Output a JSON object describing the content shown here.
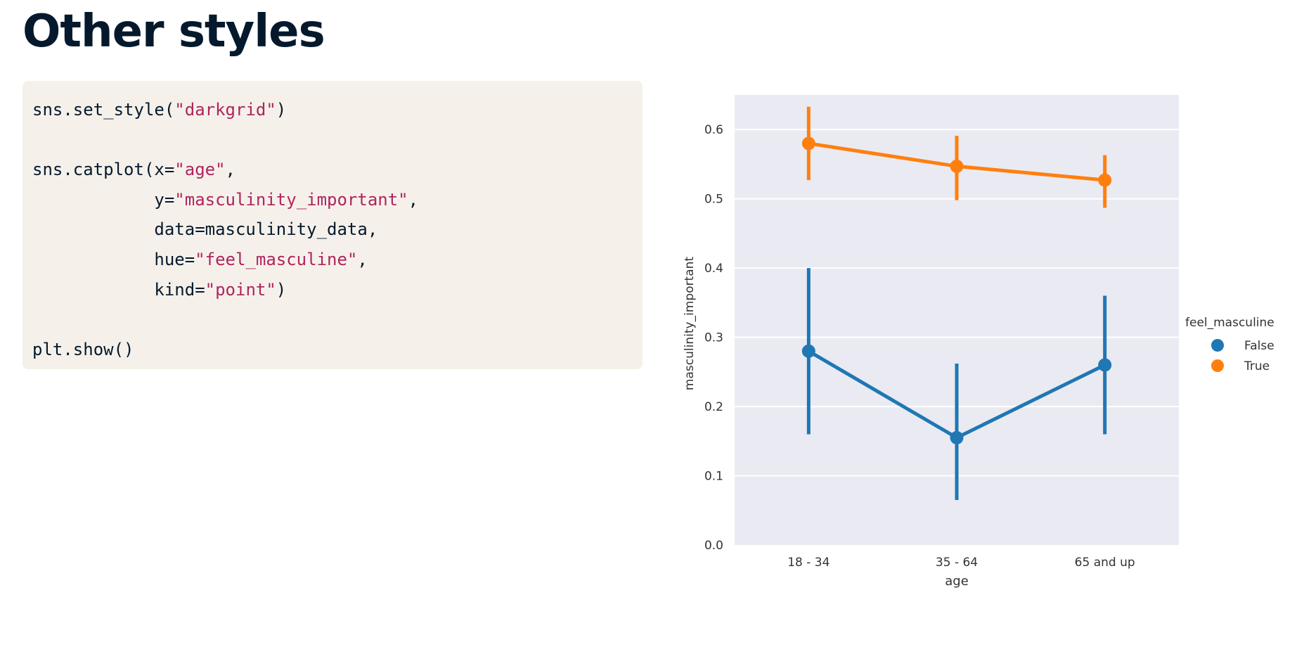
{
  "page": {
    "title": "Other styles"
  },
  "code": {
    "lines": [
      [
        {
          "t": "sns.set_style("
        },
        {
          "t": "\"darkgrid\"",
          "s": true
        },
        {
          "t": ")"
        }
      ],
      [],
      [
        {
          "t": "sns.catplot(x="
        },
        {
          "t": "\"age\"",
          "s": true
        },
        {
          "t": ","
        }
      ],
      [
        {
          "t": "            y="
        },
        {
          "t": "\"masculinity_important\"",
          "s": true
        },
        {
          "t": ","
        }
      ],
      [
        {
          "t": "            data=masculinity_data,"
        }
      ],
      [
        {
          "t": "            hue="
        },
        {
          "t": "\"feel_masculine\"",
          "s": true
        },
        {
          "t": ","
        }
      ],
      [
        {
          "t": "            kind="
        },
        {
          "t": "\"point\"",
          "s": true
        },
        {
          "t": ")"
        }
      ],
      [],
      [
        {
          "t": "plt.show()"
        }
      ]
    ]
  },
  "chart_data": {
    "type": "line",
    "style": "darkgrid",
    "title": "",
    "xlabel": "age",
    "ylabel": "masculinity_important",
    "categories": [
      "18 - 34",
      "35 - 64",
      "65 and up"
    ],
    "ylim": [
      0.0,
      0.65
    ],
    "yticks": [
      "0.0",
      "0.1",
      "0.2",
      "0.3",
      "0.4",
      "0.5",
      "0.6"
    ],
    "grid": true,
    "legend": {
      "title": "feel_masculine",
      "placement": "right"
    },
    "series": [
      {
        "name": "False",
        "color": "#1f77b4",
        "values": [
          0.28,
          0.155,
          0.26
        ],
        "ci_low": [
          0.16,
          0.065,
          0.16
        ],
        "ci_high": [
          0.4,
          0.262,
          0.36
        ]
      },
      {
        "name": "True",
        "color": "#ff7f0e",
        "values": [
          0.58,
          0.547,
          0.527
        ],
        "ci_low": [
          0.527,
          0.498,
          0.487
        ],
        "ci_high": [
          0.633,
          0.591,
          0.563
        ]
      }
    ]
  }
}
